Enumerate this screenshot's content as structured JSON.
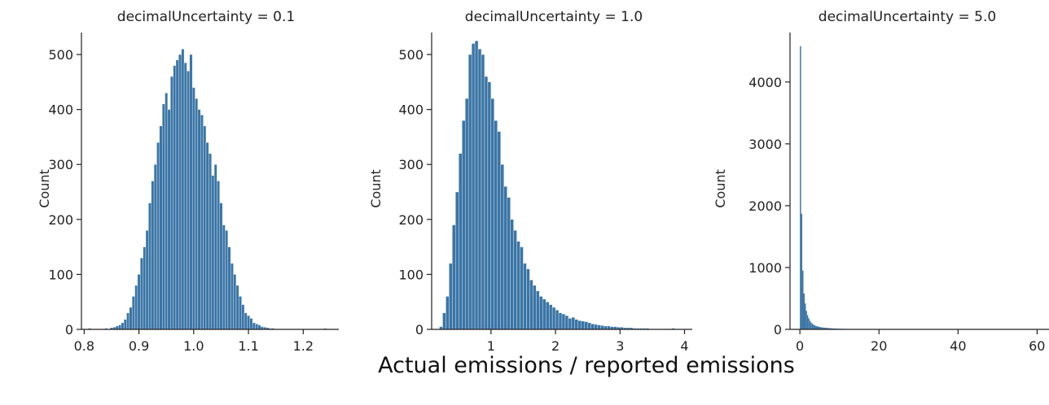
{
  "figure": {
    "xlabel": "Actual emissions / reported emissions",
    "bar_color": "#3B75A6"
  },
  "chart_data": [
    {
      "type": "bar",
      "title": "decimalUncertainty = 0.1",
      "ylabel": "Count",
      "xlabel": "",
      "xlim": [
        0.795,
        1.265
      ],
      "ylim": [
        0,
        540
      ],
      "xticks": [
        0.8,
        0.9,
        1.0,
        1.1,
        1.2
      ],
      "xtick_labels": [
        "0.8",
        "0.9",
        "1.0",
        "1.1",
        "1.2"
      ],
      "yticks": [
        0,
        100,
        200,
        300,
        400,
        500
      ],
      "ytick_labels": [
        "0",
        "100",
        "200",
        "300",
        "400",
        "500"
      ],
      "bin_width": 0.005,
      "bins_x": [
        0.805,
        0.81,
        0.815,
        0.82,
        0.825,
        0.83,
        0.835,
        0.84,
        0.845,
        0.85,
        0.855,
        0.86,
        0.865,
        0.87,
        0.875,
        0.88,
        0.885,
        0.89,
        0.895,
        0.9,
        0.905,
        0.91,
        0.915,
        0.92,
        0.925,
        0.93,
        0.935,
        0.94,
        0.945,
        0.95,
        0.955,
        0.96,
        0.965,
        0.97,
        0.975,
        0.98,
        0.985,
        0.99,
        0.995,
        1.0,
        1.005,
        1.01,
        1.015,
        1.02,
        1.025,
        1.03,
        1.035,
        1.04,
        1.045,
        1.05,
        1.055,
        1.06,
        1.065,
        1.07,
        1.075,
        1.08,
        1.085,
        1.09,
        1.095,
        1.1,
        1.105,
        1.11,
        1.115,
        1.12,
        1.125,
        1.13,
        1.135,
        1.14,
        1.145,
        1.15,
        1.155,
        1.16,
        1.165,
        1.17,
        1.175,
        1.18,
        1.185,
        1.19,
        1.195,
        1.2,
        1.205,
        1.21,
        1.215,
        1.22,
        1.225,
        1.23,
        1.235,
        1.24,
        1.245
      ],
      "values": [
        0,
        2,
        0,
        0,
        0,
        0,
        0,
        2,
        0,
        3,
        4,
        6,
        8,
        12,
        18,
        30,
        40,
        60,
        80,
        100,
        130,
        150,
        180,
        230,
        270,
        300,
        340,
        370,
        410,
        430,
        400,
        460,
        480,
        490,
        500,
        510,
        485,
        470,
        500,
        440,
        420,
        400,
        390,
        370,
        340,
        320,
        280,
        300,
        270,
        230,
        190,
        180,
        150,
        120,
        100,
        80,
        60,
        45,
        30,
        25,
        20,
        12,
        10,
        8,
        5,
        4,
        3,
        2,
        2,
        1,
        0,
        0,
        1,
        0,
        0,
        0,
        0,
        0,
        0,
        0,
        0,
        0,
        0,
        0,
        0,
        0,
        0,
        2,
        0
      ]
    },
    {
      "type": "bar",
      "title": "decimalUncertainty = 1.0",
      "ylabel": "Count",
      "xlabel": "",
      "xlim": [
        0.08,
        4.12
      ],
      "ylim": [
        0,
        540
      ],
      "xticks": [
        1,
        2,
        3,
        4
      ],
      "xtick_labels": [
        "1",
        "2",
        "3",
        "4"
      ],
      "yticks": [
        0,
        100,
        200,
        300,
        400,
        500
      ],
      "ytick_labels": [
        "0",
        "100",
        "200",
        "300",
        "400",
        "500"
      ],
      "bin_width": 0.05,
      "bins_x": [
        0.225,
        0.275,
        0.325,
        0.375,
        0.425,
        0.475,
        0.525,
        0.575,
        0.625,
        0.675,
        0.725,
        0.775,
        0.825,
        0.875,
        0.925,
        0.975,
        1.025,
        1.075,
        1.125,
        1.175,
        1.225,
        1.275,
        1.325,
        1.375,
        1.425,
        1.475,
        1.525,
        1.575,
        1.625,
        1.675,
        1.725,
        1.775,
        1.825,
        1.875,
        1.925,
        1.975,
        2.025,
        2.075,
        2.125,
        2.175,
        2.225,
        2.275,
        2.325,
        2.375,
        2.425,
        2.475,
        2.525,
        2.575,
        2.625,
        2.675,
        2.725,
        2.775,
        2.825,
        2.875,
        2.925,
        2.975,
        3.025,
        3.075,
        3.125,
        3.175,
        3.225,
        3.275,
        3.325,
        3.375,
        3.425,
        3.475,
        3.525,
        3.575,
        3.625,
        3.675,
        3.725,
        3.775,
        3.825,
        3.875
      ],
      "values": [
        5,
        30,
        60,
        120,
        190,
        250,
        320,
        380,
        420,
        500,
        520,
        525,
        510,
        500,
        460,
        450,
        420,
        380,
        360,
        300,
        260,
        240,
        200,
        180,
        160,
        150,
        120,
        110,
        90,
        80,
        70,
        60,
        55,
        50,
        45,
        40,
        35,
        30,
        28,
        25,
        20,
        22,
        18,
        16,
        15,
        14,
        12,
        10,
        9,
        8,
        7,
        6,
        6,
        5,
        5,
        4,
        4,
        3,
        3,
        3,
        2,
        2,
        2,
        2,
        2,
        1,
        1,
        1,
        1,
        1,
        1,
        1,
        2,
        1
      ]
    },
    {
      "type": "bar",
      "title": "decimalUncertainty = 5.0",
      "ylabel": "Count",
      "xlabel": "",
      "xlim": [
        -2.5,
        63
      ],
      "ylim": [
        0,
        4800
      ],
      "xticks": [
        0,
        20,
        40,
        60
      ],
      "xtick_labels": [
        "0",
        "20",
        "40",
        "60"
      ],
      "yticks": [
        0,
        1000,
        2000,
        3000,
        4000
      ],
      "ytick_labels": [
        "0",
        "1000",
        "2000",
        "3000",
        "4000"
      ],
      "bin_width": 0.3,
      "bins_x": [
        0.15,
        0.45,
        0.75,
        1.05,
        1.35,
        1.65,
        1.95,
        2.25,
        2.55,
        2.85,
        3.15,
        3.45,
        3.75,
        4.05,
        4.35,
        4.65,
        4.95,
        5.25,
        5.55,
        5.85,
        6.15,
        6.45,
        6.75,
        7.05,
        7.35,
        7.65,
        7.95,
        8.25,
        8.55,
        8.85,
        9.15,
        9.45,
        9.75,
        10.05,
        10.35,
        10.65,
        10.95,
        11.25,
        11.55,
        11.85,
        12.15,
        12.45,
        12.75,
        13.05,
        13.35,
        13.65,
        13.95,
        14.25,
        14.55,
        14.85,
        15.15,
        15.45,
        15.75,
        16.05,
        16.35,
        16.65,
        16.95
      ],
      "values": [
        4580,
        1870,
        950,
        580,
        420,
        300,
        230,
        180,
        140,
        110,
        90,
        75,
        65,
        55,
        50,
        45,
        40,
        35,
        32,
        30,
        28,
        26,
        24,
        22,
        20,
        18,
        17,
        16,
        15,
        14,
        13,
        12,
        11,
        10,
        10,
        9,
        9,
        8,
        8,
        7,
        7,
        6,
        6,
        5,
        5,
        5,
        4,
        4,
        4,
        3,
        3,
        3,
        3,
        2,
        2,
        2,
        2
      ]
    }
  ]
}
